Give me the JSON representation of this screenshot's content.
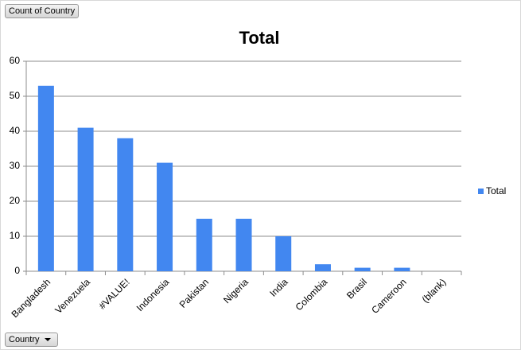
{
  "chart_data": {
    "type": "bar",
    "title": "Total",
    "value_field": "Count of Country",
    "axis_field": "Country",
    "categories": [
      "Bangladesh",
      "Venezuela",
      "#VALUE!",
      "Indonesia",
      "Pakistan",
      "Nigeria",
      "India",
      "Colombia",
      "Brasil",
      "Cameroon",
      "(blank)"
    ],
    "series": [
      {
        "name": "Total",
        "color": "#4287f0",
        "values": [
          53,
          41,
          38,
          31,
          15,
          15,
          10,
          2,
          1,
          1,
          0
        ]
      }
    ],
    "ylim": [
      0,
      60
    ],
    "yticks": [
      0,
      10,
      20,
      30,
      40,
      50,
      60
    ],
    "grid": true,
    "legend": "right"
  }
}
